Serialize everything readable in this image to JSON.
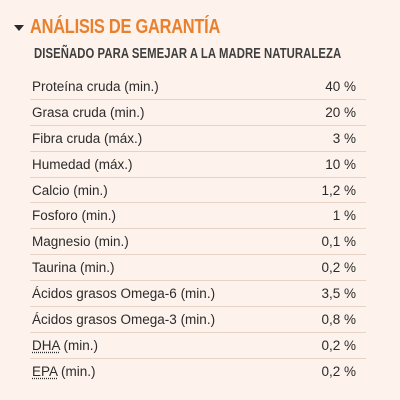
{
  "section": {
    "title": "ANÁLISIS DE GARANTÍA",
    "subtitle": "DISEÑADO PARA SEMEJAR A LA MADRE NATURALEZA",
    "toggle_icon": "caret-down-icon",
    "colors": {
      "title": "#e8802e",
      "background": "#fdf3ec",
      "divider": "#e6d3c5",
      "text": "#2b2b2b"
    }
  },
  "analysis": [
    {
      "name": "Proteína cruda (min.)",
      "value": "40 %"
    },
    {
      "name": "Grasa cruda (min.)",
      "value": "20 %"
    },
    {
      "name": "Fibra cruda (máx.)",
      "value": "3 %"
    },
    {
      "name": "Humedad (máx.)",
      "value": "10 %"
    },
    {
      "name": "Calcio (min.)",
      "value": "1,2 %"
    },
    {
      "name": "Fosforo (min.)",
      "value": "1 %"
    },
    {
      "name": "Magnesio (min.)",
      "value": "0,1 %"
    },
    {
      "name": "Taurina (min.)",
      "value": "0,2 %"
    },
    {
      "name": "Ácidos grasos Omega-6 (min.)",
      "value": "3,5 %"
    },
    {
      "name": "Ácidos grasos Omega-3 (min.)",
      "value": "0,8 %"
    },
    {
      "abbr": "DHA",
      "qualifier": " (min.)",
      "value": "0,2 %"
    },
    {
      "abbr": "EPA",
      "qualifier": " (min.)",
      "value": "0,2 %"
    }
  ]
}
